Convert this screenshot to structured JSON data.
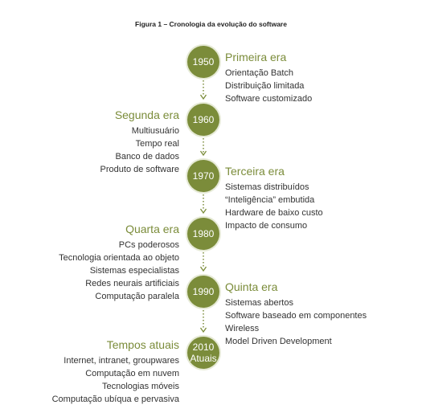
{
  "title": "Figura 1 – Cronologia da evolução do software",
  "colors": {
    "accent": "#7b8c3a",
    "text": "#333333"
  },
  "eras": [
    {
      "year": "1950",
      "label": "",
      "name": "Primeira era",
      "side": "right",
      "items": [
        "Orientação Batch",
        "Distribuição limitada",
        "Software customizado"
      ]
    },
    {
      "year": "1960",
      "label": "",
      "name": "Segunda era",
      "side": "left",
      "items": [
        "Multiusuário",
        "Tempo real",
        "Banco de dados",
        "Produto de software"
      ]
    },
    {
      "year": "1970",
      "label": "",
      "name": "Terceira era",
      "side": "right",
      "items": [
        "Sistemas distribuídos",
        "“Inteligência” embutida",
        "Hardware de baixo custo",
        "Impacto de consumo"
      ]
    },
    {
      "year": "1980",
      "label": "",
      "name": "Quarta era",
      "side": "left",
      "items": [
        "PCs poderosos",
        "Tecnologia orientada ao objeto",
        "Sistemas especialistas",
        "Redes neurais artificiais",
        "Computação paralela"
      ]
    },
    {
      "year": "1990",
      "label": "",
      "name": "Quinta era",
      "side": "right",
      "items": [
        "Sistemas abertos",
        "Software baseado em componentes",
        "Wireless",
        "Model Driven Development"
      ]
    },
    {
      "year": "2010",
      "label": "Atuais",
      "name": "Tempos atuais",
      "side": "left",
      "items": [
        "Internet, intranet, groupwares",
        "Computação em nuvem",
        "Tecnologias móveis",
        "Computação ubíqua e pervasiva"
      ]
    }
  ]
}
